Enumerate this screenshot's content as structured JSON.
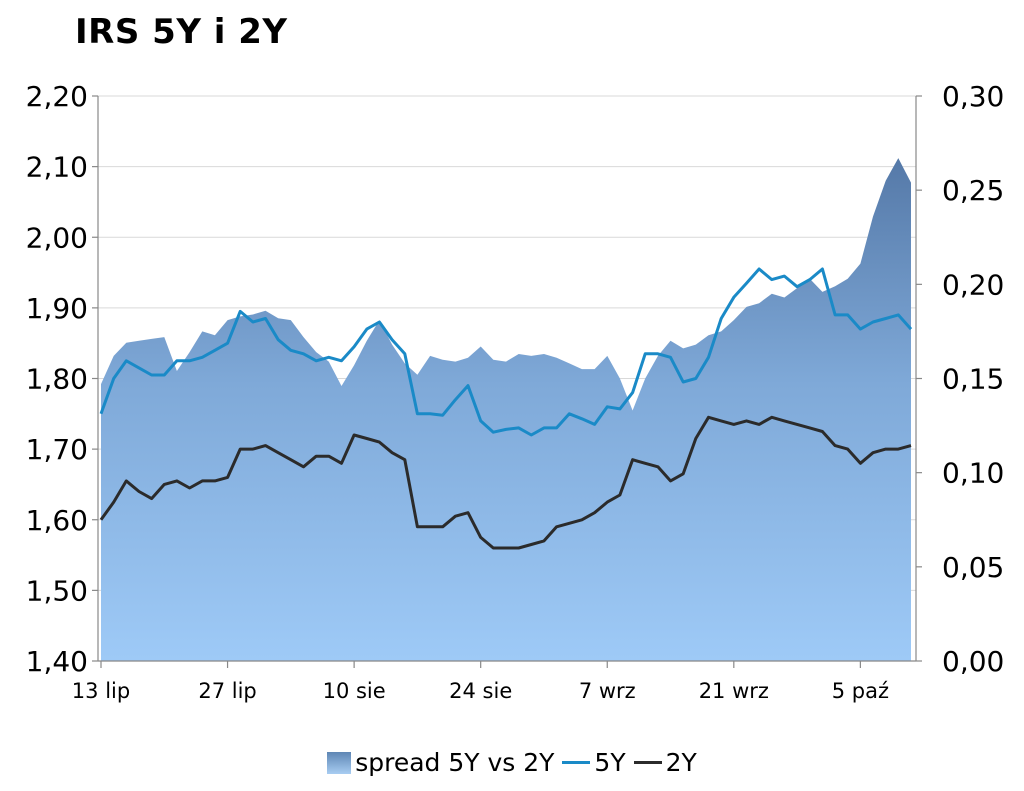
{
  "chart_data": {
    "type": "area",
    "title": "IRS 5Y i 2Y",
    "x_ticks": [
      "13 lip",
      "27 lip",
      "10 sie",
      "24 sie",
      "7 wrz",
      "21 wrz",
      "5 paź"
    ],
    "x_tick_index": [
      0,
      10,
      20,
      30,
      40,
      50,
      60
    ],
    "x_count": 65,
    "y_left": {
      "min": 1.4,
      "max": 2.2,
      "ticks": [
        "1,40",
        "1,50",
        "1,60",
        "1,70",
        "1,80",
        "1,90",
        "2,00",
        "2,10",
        "2,20"
      ]
    },
    "y_right": {
      "min": 0.0,
      "max": 0.3,
      "ticks": [
        "0,00",
        "0,05",
        "0,10",
        "0,15",
        "0,20",
        "0,25",
        "0,30"
      ]
    },
    "legend": {
      "placement": "bottom"
    },
    "series": [
      {
        "name": "spread 5Y vs 2Y",
        "axis": "right",
        "color": "#7fa7d3",
        "values": [
          0.147,
          0.162,
          0.169,
          0.17,
          0.171,
          0.172,
          0.154,
          0.164,
          0.175,
          0.173,
          0.181,
          0.183,
          0.184,
          0.186,
          0.182,
          0.181,
          0.172,
          0.164,
          0.159,
          0.146,
          0.157,
          0.17,
          0.181,
          0.168,
          0.158,
          0.152,
          0.162,
          0.16,
          0.159,
          0.161,
          0.167,
          0.16,
          0.159,
          0.163,
          0.162,
          0.163,
          0.161,
          0.158,
          0.155,
          0.155,
          0.162,
          0.15,
          0.133,
          0.15,
          0.162,
          0.17,
          0.166,
          0.168,
          0.173,
          0.175,
          0.181,
          0.188,
          0.19,
          0.195,
          0.193,
          0.198,
          0.203,
          0.196,
          0.199,
          0.203,
          0.211,
          0.236,
          0.255,
          0.267,
          0.254
        ]
      },
      {
        "name": "5Y",
        "axis": "left",
        "color": "#1a8ac7",
        "values": [
          1.75,
          1.8,
          1.825,
          1.815,
          1.805,
          1.805,
          1.825,
          1.825,
          1.83,
          1.84,
          1.85,
          1.895,
          1.88,
          1.885,
          1.855,
          1.84,
          1.835,
          1.825,
          1.83,
          1.825,
          1.845,
          1.87,
          1.88,
          1.855,
          1.835,
          1.75,
          1.75,
          1.748,
          1.77,
          1.79,
          1.74,
          1.724,
          1.728,
          1.73,
          1.72,
          1.73,
          1.73,
          1.75,
          1.743,
          1.735,
          1.76,
          1.757,
          1.78,
          1.835,
          1.835,
          1.83,
          1.795,
          1.8,
          1.83,
          1.885,
          1.915,
          1.935,
          1.955,
          1.94,
          1.945,
          1.93,
          1.94,
          1.955,
          1.89,
          1.89,
          1.87,
          1.88,
          1.885,
          1.89,
          1.87
        ]
      },
      {
        "name": "2Y",
        "axis": "left",
        "color": "#2b2b2b",
        "values": [
          1.6,
          1.625,
          1.655,
          1.64,
          1.63,
          1.65,
          1.655,
          1.645,
          1.655,
          1.655,
          1.66,
          1.7,
          1.7,
          1.705,
          1.695,
          1.685,
          1.675,
          1.69,
          1.69,
          1.68,
          1.72,
          1.715,
          1.71,
          1.695,
          1.685,
          1.59,
          1.59,
          1.59,
          1.605,
          1.61,
          1.575,
          1.56,
          1.56,
          1.56,
          1.565,
          1.57,
          1.59,
          1.595,
          1.6,
          1.61,
          1.625,
          1.635,
          1.685,
          1.68,
          1.675,
          1.655,
          1.665,
          1.715,
          1.745,
          1.74,
          1.735,
          1.74,
          1.735,
          1.745,
          1.74,
          1.735,
          1.73,
          1.725,
          1.705,
          1.7,
          1.68,
          1.695,
          1.7,
          1.7,
          1.705
        ]
      }
    ]
  }
}
